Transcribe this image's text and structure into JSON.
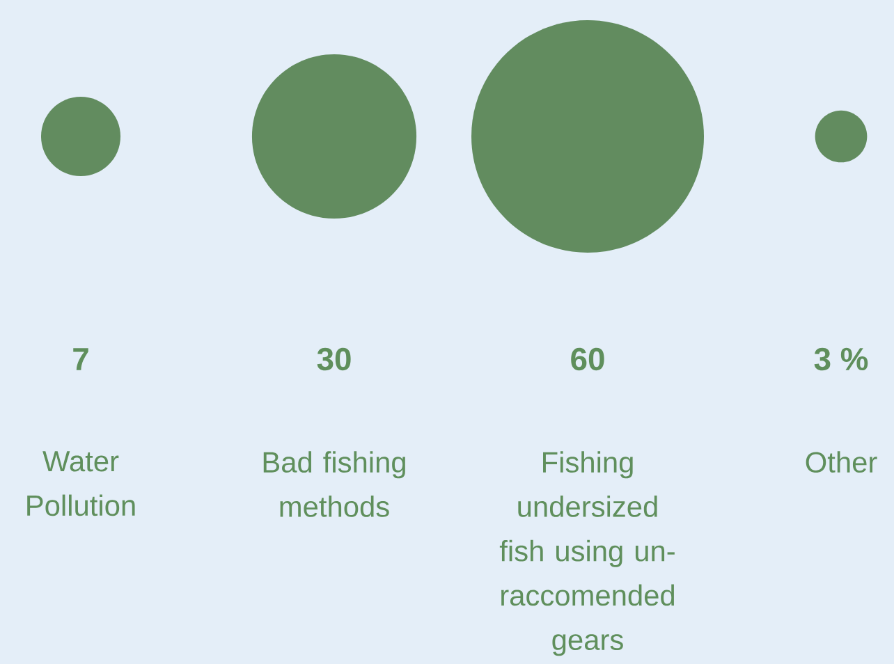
{
  "chart_data": {
    "type": "other",
    "categories": [
      "Water Pollution",
      "Bad fishing methods",
      "Fishing undersized fish using un-raccomended gears",
      "Other"
    ],
    "values": [
      7,
      30,
      60,
      3
    ],
    "value_labels": [
      "7",
      "30",
      "60",
      "3 %"
    ],
    "color": "#628c5f"
  }
}
